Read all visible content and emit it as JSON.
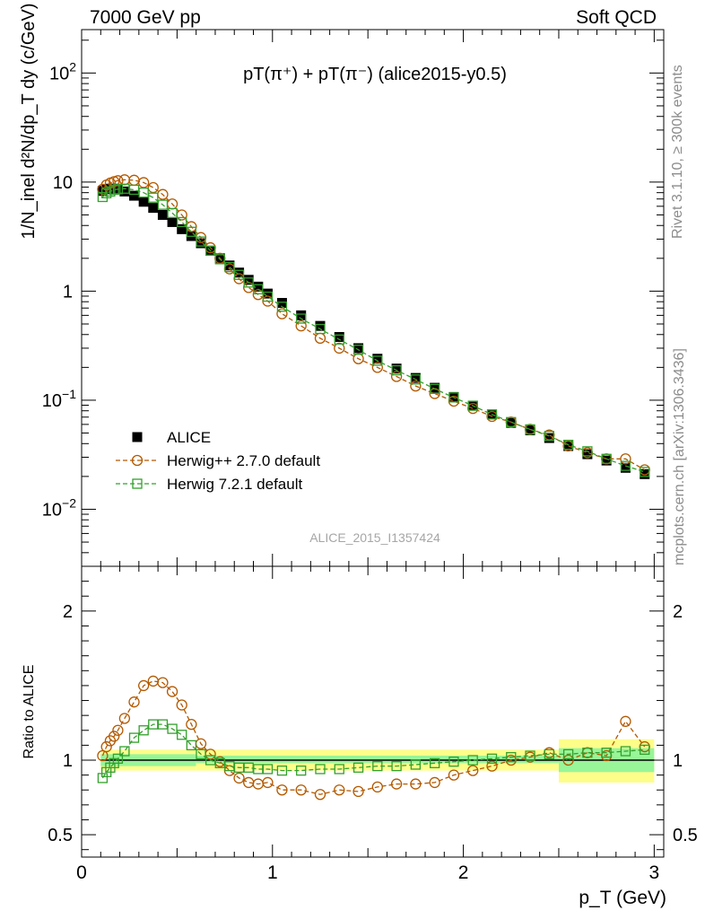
{
  "header": {
    "left": "7000 GeV pp",
    "right": "Soft QCD"
  },
  "side_labels": {
    "rivet": "Rivet 3.1.10, ≥ 300k events",
    "mcplots": "mcplots.cern.ch [arXiv:1306.3436]"
  },
  "watermark": "ALICE_2015_I1357424",
  "chart_data": [
    {
      "type": "scatter",
      "title": "pT(π⁺) + pT(π⁻) (alice2015-y0.5)",
      "ylabel": "1/N_inel d²N/dp_T dy (c/GeV)",
      "yscale": "log",
      "xlim": [
        0,
        3.05
      ],
      "ylim": [
        0.003,
        250
      ],
      "yticks": [
        {
          "value": 100,
          "base": "10",
          "exp": "2"
        },
        {
          "value": 10,
          "base": "10",
          "exp": ""
        },
        {
          "value": 1,
          "base": "1",
          "exp": ""
        },
        {
          "value": 0.1,
          "base": "10",
          "exp": "−1"
        },
        {
          "value": 0.01,
          "base": "10",
          "exp": "−2"
        }
      ],
      "legend_position": "bottom-left",
      "series": [
        {
          "name": "ALICE",
          "color": "#000000",
          "marker": "filled-square",
          "x": [
            0.11,
            0.13,
            0.15,
            0.17,
            0.19,
            0.225,
            0.275,
            0.325,
            0.375,
            0.425,
            0.475,
            0.525,
            0.575,
            0.625,
            0.675,
            0.725,
            0.775,
            0.825,
            0.875,
            0.925,
            0.975,
            1.05,
            1.15,
            1.25,
            1.35,
            1.45,
            1.55,
            1.65,
            1.75,
            1.85,
            1.95,
            2.05,
            2.15,
            2.25,
            2.35,
            2.45,
            2.55,
            2.65,
            2.75,
            2.85,
            2.95
          ],
          "y": [
            8.3,
            8.6,
            8.7,
            8.7,
            8.6,
            8.2,
            7.5,
            6.6,
            5.8,
            5.0,
            4.3,
            3.7,
            3.2,
            2.75,
            2.35,
            2.0,
            1.72,
            1.48,
            1.27,
            1.1,
            0.95,
            0.78,
            0.6,
            0.48,
            0.38,
            0.3,
            0.24,
            0.195,
            0.16,
            0.13,
            0.107,
            0.089,
            0.074,
            0.062,
            0.053,
            0.045,
            0.038,
            0.032,
            0.028,
            0.024,
            0.021
          ]
        },
        {
          "name": "Herwig++ 2.7.0 default",
          "color": "#b35900",
          "marker": "open-circle",
          "x": [
            0.11,
            0.13,
            0.15,
            0.17,
            0.19,
            0.225,
            0.275,
            0.325,
            0.375,
            0.425,
            0.475,
            0.525,
            0.575,
            0.625,
            0.675,
            0.725,
            0.775,
            0.825,
            0.875,
            0.925,
            0.975,
            1.05,
            1.15,
            1.25,
            1.35,
            1.45,
            1.55,
            1.65,
            1.75,
            1.85,
            1.95,
            2.05,
            2.15,
            2.25,
            2.35,
            2.45,
            2.55,
            2.65,
            2.75,
            2.85,
            2.95
          ],
          "y": [
            8.6,
            9.4,
            9.8,
            10.1,
            10.3,
            10.5,
            10.4,
            9.9,
            8.9,
            7.7,
            6.3,
            5.0,
            3.9,
            3.1,
            2.5,
            2.0,
            1.6,
            1.3,
            1.08,
            0.93,
            0.81,
            0.62,
            0.48,
            0.37,
            0.3,
            0.24,
            0.2,
            0.165,
            0.135,
            0.115,
            0.098,
            0.084,
            0.071,
            0.063,
            0.054,
            0.048,
            0.038,
            0.033,
            0.029,
            0.029,
            0.023
          ]
        },
        {
          "name": "Herwig 7.2.1 default",
          "color": "#33a02c",
          "marker": "open-square",
          "x": [
            0.11,
            0.13,
            0.15,
            0.17,
            0.19,
            0.225,
            0.275,
            0.325,
            0.375,
            0.425,
            0.475,
            0.525,
            0.575,
            0.625,
            0.675,
            0.725,
            0.775,
            0.825,
            0.875,
            0.925,
            0.975,
            1.05,
            1.15,
            1.25,
            1.35,
            1.45,
            1.55,
            1.65,
            1.75,
            1.85,
            1.95,
            2.05,
            2.15,
            2.25,
            2.35,
            2.45,
            2.55,
            2.65,
            2.75,
            2.85,
            2.95
          ],
          "y": [
            7.3,
            7.9,
            8.2,
            8.5,
            8.6,
            8.7,
            8.5,
            8.0,
            7.2,
            6.2,
            5.2,
            4.3,
            3.5,
            2.85,
            2.35,
            1.96,
            1.66,
            1.41,
            1.2,
            1.04,
            0.89,
            0.72,
            0.56,
            0.45,
            0.36,
            0.29,
            0.23,
            0.188,
            0.155,
            0.127,
            0.106,
            0.089,
            0.074,
            0.063,
            0.054,
            0.047,
            0.039,
            0.034,
            0.029,
            0.025,
            0.022
          ]
        }
      ]
    },
    {
      "type": "line",
      "title": "",
      "ylabel": "Ratio to ALICE",
      "xlabel": "p_T (GeV)",
      "xlim": [
        0,
        3.05
      ],
      "ylim": [
        0.35,
        2.3
      ],
      "xticks": [
        0,
        1,
        2,
        3
      ],
      "yticks": [
        0.5,
        1,
        2
      ],
      "bands": {
        "x_edges": [
          0.1,
          0.6,
          2.5,
          3.0
        ],
        "stat_sys_inner": [
          0.96,
          1.04,
          0.98,
          1.03,
          0.92,
          1.08
        ],
        "stat_sys_outer": [
          0.93,
          1.07,
          0.93,
          1.07,
          0.85,
          1.14
        ],
        "inner_color": "#98f598",
        "outer_color": "#fdfd8a"
      },
      "series": [
        {
          "name": "Herwig++ 2.7.0 default",
          "color": "#b35900",
          "marker": "open-circle",
          "x": [
            0.11,
            0.13,
            0.15,
            0.17,
            0.19,
            0.225,
            0.275,
            0.325,
            0.375,
            0.425,
            0.475,
            0.525,
            0.575,
            0.625,
            0.675,
            0.725,
            0.775,
            0.825,
            0.875,
            0.925,
            0.975,
            1.05,
            1.15,
            1.25,
            1.35,
            1.45,
            1.55,
            1.65,
            1.75,
            1.85,
            1.95,
            2.05,
            2.15,
            2.25,
            2.35,
            2.45,
            2.55,
            2.65,
            2.75,
            2.85,
            2.95
          ],
          "y": [
            1.03,
            1.09,
            1.13,
            1.16,
            1.2,
            1.28,
            1.39,
            1.5,
            1.53,
            1.52,
            1.46,
            1.37,
            1.24,
            1.11,
            1.04,
            0.99,
            0.93,
            0.88,
            0.85,
            0.84,
            0.85,
            0.8,
            0.8,
            0.77,
            0.8,
            0.79,
            0.82,
            0.84,
            0.84,
            0.85,
            0.9,
            0.93,
            0.96,
            1.0,
            1.02,
            1.05,
            1.0,
            1.05,
            1.03,
            1.26,
            1.09
          ]
        },
        {
          "name": "Herwig 7.2.1 default",
          "color": "#33a02c",
          "marker": "open-square",
          "x": [
            0.11,
            0.13,
            0.15,
            0.17,
            0.19,
            0.225,
            0.275,
            0.325,
            0.375,
            0.425,
            0.475,
            0.525,
            0.575,
            0.625,
            0.675,
            0.725,
            0.775,
            0.825,
            0.875,
            0.925,
            0.975,
            1.05,
            1.15,
            1.25,
            1.35,
            1.45,
            1.55,
            1.65,
            1.75,
            1.85,
            1.95,
            2.05,
            2.15,
            2.25,
            2.35,
            2.45,
            2.55,
            2.65,
            2.75,
            2.85,
            2.95
          ],
          "y": [
            0.88,
            0.92,
            0.95,
            0.98,
            1.01,
            1.06,
            1.15,
            1.2,
            1.24,
            1.24,
            1.21,
            1.17,
            1.1,
            1.04,
            1.0,
            0.98,
            0.96,
            0.95,
            0.95,
            0.94,
            0.94,
            0.93,
            0.93,
            0.94,
            0.94,
            0.95,
            0.96,
            0.96,
            0.97,
            0.98,
            0.99,
            1.0,
            1.01,
            1.02,
            1.03,
            1.04,
            1.04,
            1.05,
            1.05,
            1.06,
            1.07
          ]
        }
      ]
    }
  ]
}
